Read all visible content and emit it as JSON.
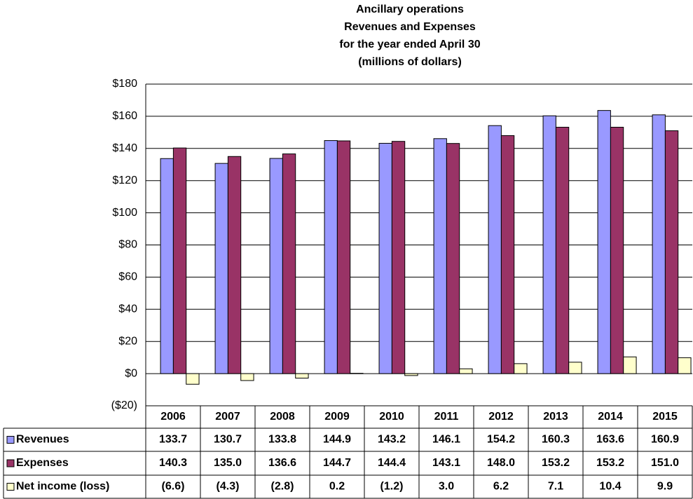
{
  "chart_data": {
    "type": "bar",
    "title": [
      "Ancillary operations",
      "Revenues and Expenses",
      "for the year ended  April 30",
      "(millions of dollars)"
    ],
    "categories": [
      "2006",
      "2007",
      "2008",
      "2009",
      "2010",
      "2011",
      "2012",
      "2013",
      "2014",
      "2015"
    ],
    "series": [
      {
        "name": "Revenues",
        "color": "#9999ff",
        "values": [
          133.7,
          130.7,
          133.8,
          144.9,
          143.2,
          146.1,
          154.2,
          160.3,
          163.6,
          160.9
        ],
        "value_labels": [
          "133.7",
          "130.7",
          "133.8",
          "144.9",
          "143.2",
          "146.1",
          "154.2",
          "160.3",
          "163.6",
          "160.9"
        ]
      },
      {
        "name": "Expenses",
        "color": "#993366",
        "values": [
          140.3,
          135.0,
          136.6,
          144.7,
          144.4,
          143.1,
          148.0,
          153.2,
          153.2,
          151.0
        ],
        "value_labels": [
          "140.3",
          "135.0",
          "136.6",
          "144.7",
          "144.4",
          "143.1",
          "148.0",
          "153.2",
          "153.2",
          "151.0"
        ]
      },
      {
        "name": "Net income (loss)",
        "color": "#ffffcc",
        "values": [
          -6.6,
          -4.3,
          -2.8,
          0.2,
          -1.2,
          3.0,
          6.2,
          7.1,
          10.4,
          9.9
        ],
        "value_labels": [
          "(6.6)",
          "(4.3)",
          "(2.8)",
          "0.2",
          "(1.2)",
          "3.0",
          "6.2",
          "7.1",
          "10.4",
          "9.9"
        ]
      }
    ],
    "ylim": [
      -20,
      180
    ],
    "yticks": [
      {
        "value": -20,
        "label": "($20)"
      },
      {
        "value": 0,
        "label": "$0"
      },
      {
        "value": 20,
        "label": "$20"
      },
      {
        "value": 40,
        "label": "$40"
      },
      {
        "value": 60,
        "label": "$60"
      },
      {
        "value": 80,
        "label": "$80"
      },
      {
        "value": 100,
        "label": "$100"
      },
      {
        "value": 120,
        "label": "$120"
      },
      {
        "value": 140,
        "label": "$140"
      },
      {
        "value": 160,
        "label": "$160"
      },
      {
        "value": 180,
        "label": "$180"
      }
    ],
    "grid": true
  }
}
